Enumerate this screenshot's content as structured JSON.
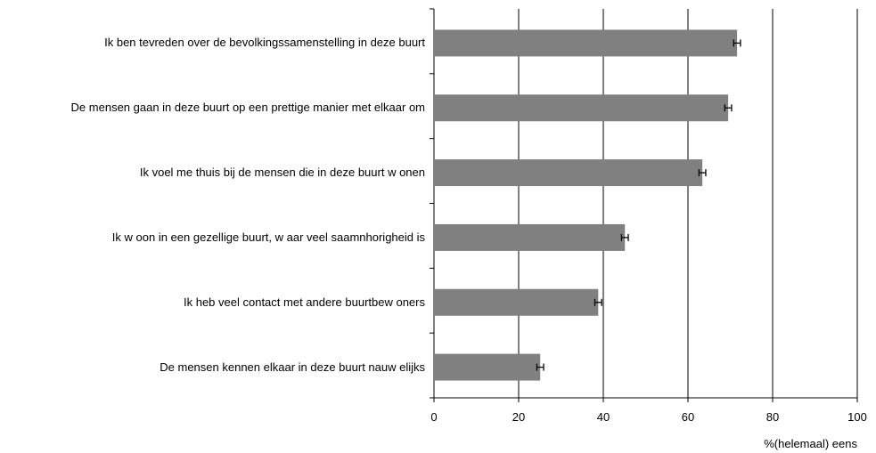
{
  "chart_data": {
    "type": "bar",
    "orientation": "horizontal",
    "categories": [
      "Ik ben tevreden over de bevolkingssamenstelling in deze buurt",
      "De mensen gaan in deze buurt op een prettige manier met elkaar om",
      "Ik voel me thuis bij de mensen die in deze buurt w onen",
      "Ik w oon in een gezellige buurt, w aar veel saamnhorigheid is",
      "Ik heb veel contact met andere buurtbew oners",
      "De mensen kennen elkaar in deze buurt nauw elijks"
    ],
    "values": [
      71.6,
      69.5,
      63.4,
      45.1,
      38.8,
      25.1
    ],
    "errors": [
      0.8,
      0.8,
      0.8,
      0.8,
      0.8,
      0.8
    ],
    "color": "#808080",
    "x_label": "%(helemaal) eens",
    "xlim": [
      0,
      100
    ],
    "xticks": [
      0,
      20,
      40,
      60,
      80,
      100
    ],
    "grid": true
  }
}
